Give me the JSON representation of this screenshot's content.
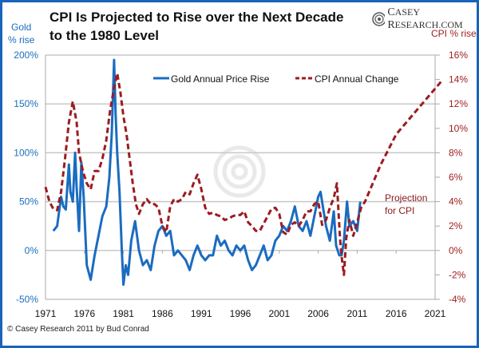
{
  "chart_data": {
    "type": "line",
    "title": "CPI Is Projected to Rise over the Next Decade to the 1980 Level",
    "ylabel_left": "Gold % rise",
    "ylabel_right": "CPI % rise",
    "xlabel": "",
    "x_ticks": [
      "1971",
      "1976",
      "1981",
      "1986",
      "1991",
      "1996",
      "2001",
      "2006",
      "2011",
      "2016",
      "2021"
    ],
    "y_left_ticks": [
      "200%",
      "150%",
      "100%",
      "50%",
      "0%",
      "-50%"
    ],
    "y_right_ticks": [
      "16%",
      "14%",
      "12%",
      "10%",
      "8%",
      "6%",
      "4%",
      "2%",
      "0%",
      "-2%",
      "-4%"
    ],
    "xlim": [
      1971,
      2023
    ],
    "ylim_left": [
      -50,
      200
    ],
    "ylim_right": [
      -4,
      16
    ],
    "grid": true,
    "legend_position": "top",
    "series": [
      {
        "name": "Gold Annual Price Rise",
        "axis": "left",
        "color": "#1a6cc0",
        "style": "solid",
        "x": [
          1972.0,
          1972.5,
          1973.0,
          1973.3,
          1973.6,
          1974.0,
          1974.2,
          1974.5,
          1974.8,
          1975.0,
          1975.3,
          1975.6,
          1975.9,
          1976.3,
          1976.8,
          1977.3,
          1977.8,
          1978.3,
          1978.8,
          1979.2,
          1979.5,
          1979.8,
          1980.0,
          1980.2,
          1980.5,
          1980.8,
          1981.0,
          1981.3,
          1981.6,
          1982.0,
          1982.5,
          1983.0,
          1983.5,
          1984.0,
          1984.5,
          1985.0,
          1985.5,
          1986.0,
          1986.5,
          1987.0,
          1987.5,
          1988.0,
          1988.5,
          1989.0,
          1989.5,
          1990.0,
          1990.5,
          1991.0,
          1991.5,
          1992.0,
          1992.5,
          1993.0,
          1993.5,
          1994.0,
          1994.5,
          1995.0,
          1995.5,
          1996.0,
          1996.5,
          1997.0,
          1997.5,
          1998.0,
          1998.5,
          1999.0,
          1999.5,
          2000.0,
          2000.5,
          2001.0,
          2001.5,
          2002.0,
          2002.5,
          2003.0,
          2003.5,
          2004.0,
          2004.5,
          2005.0,
          2005.5,
          2006.0,
          2006.3,
          2006.7,
          2007.0,
          2007.5,
          2008.0,
          2008.3,
          2008.7,
          2009.0,
          2009.3,
          2009.7,
          2010.0,
          2010.5,
          2011.0,
          2011.4
        ],
        "y": [
          20,
          25,
          55,
          45,
          42,
          88,
          60,
          50,
          100,
          65,
          20,
          90,
          55,
          -15,
          -30,
          -5,
          15,
          35,
          45,
          75,
          120,
          195,
          140,
          100,
          60,
          0,
          -35,
          -15,
          -25,
          10,
          30,
          0,
          -15,
          -10,
          -20,
          5,
          20,
          25,
          15,
          20,
          -5,
          0,
          -5,
          -10,
          -20,
          -5,
          5,
          -5,
          -10,
          -5,
          -5,
          15,
          5,
          10,
          0,
          -5,
          5,
          0,
          5,
          -10,
          -20,
          -15,
          -5,
          5,
          -10,
          -5,
          10,
          15,
          25,
          20,
          30,
          45,
          25,
          20,
          30,
          15,
          35,
          55,
          60,
          40,
          25,
          10,
          40,
          5,
          -5,
          -5,
          10,
          50,
          25,
          30,
          20,
          50
        ]
      },
      {
        "name": "CPI Annual Change",
        "axis": "right",
        "color": "#9b1c20",
        "style": "dashed",
        "x": [
          1971.0,
          1971.5,
          1972.0,
          1972.5,
          1973.0,
          1973.5,
          1974.0,
          1974.5,
          1975.0,
          1975.3,
          1975.8,
          1976.3,
          1976.8,
          1977.3,
          1977.8,
          1978.3,
          1978.8,
          1979.3,
          1979.8,
          1980.2,
          1980.6,
          1981.0,
          1981.4,
          1981.8,
          1982.2,
          1982.6,
          1983.0,
          1983.5,
          1984.0,
          1984.5,
          1985.0,
          1985.5,
          1986.0,
          1986.5,
          1987.0,
          1987.5,
          1988.0,
          1988.5,
          1989.0,
          1989.5,
          1990.0,
          1990.5,
          1991.0,
          1991.5,
          1992.0,
          1992.5,
          1993.0,
          1993.5,
          1994.0,
          1994.5,
          1995.0,
          1995.5,
          1996.0,
          1996.5,
          1997.0,
          1997.5,
          1998.0,
          1998.5,
          1999.0,
          1999.5,
          2000.0,
          2000.5,
          2001.0,
          2001.5,
          2002.0,
          2002.5,
          2003.0,
          2003.5,
          2004.0,
          2004.5,
          2005.0,
          2005.5,
          2006.0,
          2006.5,
          2007.0,
          2007.5,
          2008.0,
          2008.4,
          2008.8,
          2009.0,
          2009.3,
          2009.6,
          2010.0,
          2010.5,
          2011.0,
          2011.5,
          2012.0,
          2014.0,
          2016.0,
          2018.0,
          2020.0,
          2022.0
        ],
        "y": [
          5.2,
          4.0,
          3.4,
          3.3,
          4.8,
          7.5,
          10.5,
          12.2,
          10.5,
          8.0,
          6.5,
          5.5,
          5.0,
          6.5,
          6.5,
          7.5,
          9.0,
          11.5,
          13.3,
          14.5,
          13.0,
          11.0,
          9.5,
          7.5,
          5.5,
          3.8,
          3.0,
          3.8,
          4.2,
          3.8,
          3.8,
          3.5,
          2.0,
          1.5,
          3.6,
          4.2,
          4.0,
          4.2,
          4.8,
          4.6,
          5.5,
          6.2,
          5.0,
          3.5,
          3.0,
          3.1,
          2.9,
          2.8,
          2.5,
          2.6,
          2.8,
          2.9,
          2.9,
          3.2,
          2.3,
          2.0,
          1.6,
          1.6,
          2.2,
          2.8,
          3.4,
          3.5,
          3.0,
          1.5,
          1.3,
          2.1,
          2.3,
          2.0,
          2.5,
          3.2,
          3.2,
          3.8,
          4.0,
          2.1,
          2.5,
          3.5,
          4.3,
          5.5,
          1.0,
          -0.5,
          -2.0,
          1.0,
          2.5,
          1.2,
          2.3,
          3.5,
          4.0,
          7.0,
          9.5,
          11.0,
          12.5,
          14.0
        ]
      }
    ],
    "annotations": [
      {
        "text": "Projection for CPI",
        "line1": "Projection",
        "line2": "for CPI"
      }
    ]
  },
  "header": {
    "title": "CPI Is Projected to Rise over the Next Decade to the 1980 Level",
    "brand_c": "C",
    "brand_rest1": "ASEY ",
    "brand_r": "R",
    "brand_rest2": "ESEARCH.COM"
  },
  "axis_labels": {
    "left_line1": "Gold",
    "left_line2": "% rise",
    "right": "CPI % rise"
  },
  "legend": {
    "gold": "Gold Annual Price Rise",
    "cpi": "CPI Annual Change"
  },
  "footer": "© Casey Research 2011 by Bud Conrad"
}
